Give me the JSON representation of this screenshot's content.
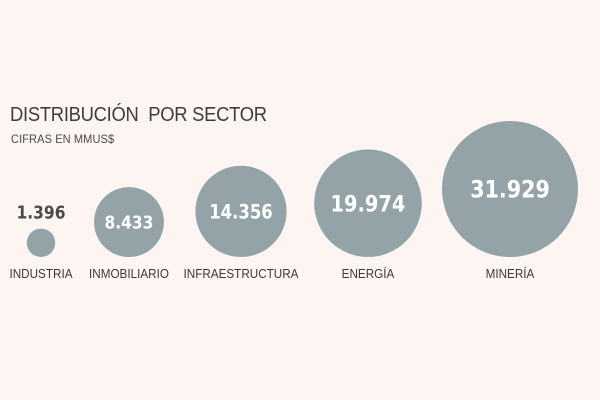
{
  "chart_data": {
    "type": "bubble",
    "title": "DISTRIBUCIÓN  POR SECTOR",
    "subtitle": "CIFRAS EN MMUS$",
    "categories": [
      "INDUSTRIA",
      "INMOBILIARIO",
      "INFRAESTRUCTURA",
      "ENERGÍA",
      "MINERÍA"
    ],
    "values": [
      1396,
      8433,
      14356,
      19974,
      31929
    ],
    "value_labels": [
      "1.396",
      "8.433",
      "14.356",
      "19.974",
      "31.929"
    ],
    "bubble_color": "#93a3a8",
    "value_color_inside": "#ffffff",
    "value_color_outside": "#4a4a4a"
  }
}
